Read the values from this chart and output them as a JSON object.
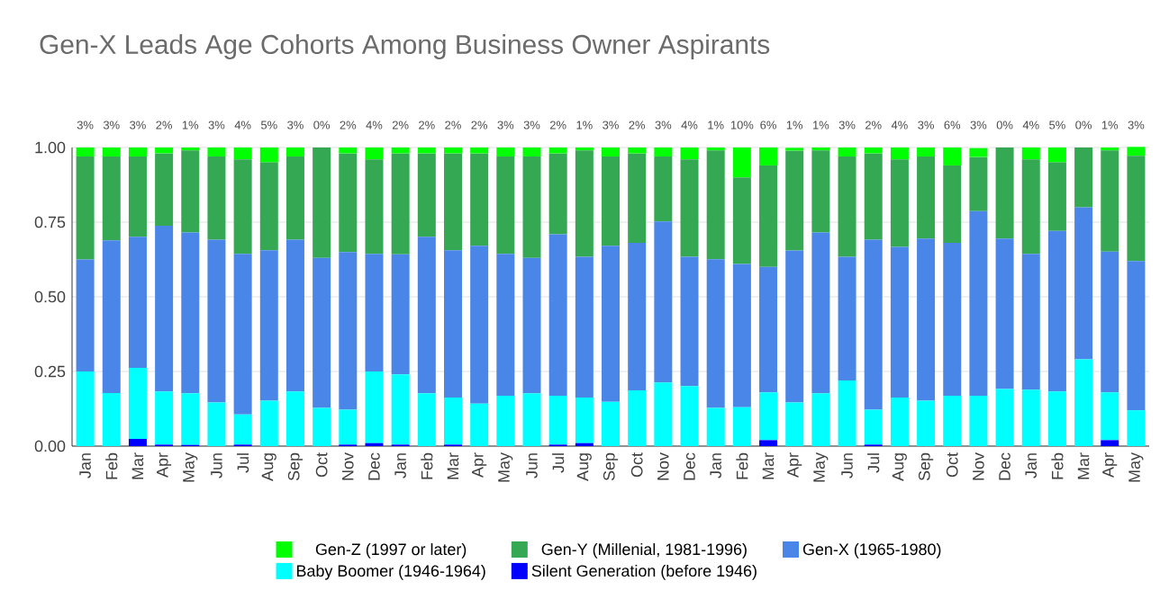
{
  "chart_data": {
    "type": "bar",
    "stacked": true,
    "title": "Gen-X Leads Age Cohorts Among Business Owner Aspirants",
    "categories": [
      "Jan",
      "Feb",
      "Mar",
      "Apr",
      "May",
      "Jun",
      "Jul",
      "Aug",
      "Sep",
      "Oct",
      "Nov",
      "Dec",
      "Jan",
      "Feb",
      "Mar",
      "Apr",
      "May",
      "Jun",
      "Jul",
      "Aug",
      "Sep",
      "Oct",
      "Nov",
      "Dec",
      "Jan",
      "Feb",
      "Mar",
      "Apr",
      "May",
      "Jun",
      "Jul",
      "Aug",
      "Sep",
      "Oct",
      "Nov",
      "Dec",
      "Jan",
      "Feb",
      "Mar",
      "Apr",
      "May"
    ],
    "series": [
      {
        "name": "Silent Generation (before 1946)",
        "color": "#0000ff",
        "values": [
          0,
          0,
          0.024,
          0.005,
          0.004,
          0,
          0.005,
          0,
          0,
          0,
          0.005,
          0.01,
          0.005,
          0,
          0.005,
          0,
          0,
          0,
          0.005,
          0.01,
          0,
          0,
          0,
          0,
          0,
          0,
          0.02,
          0,
          0,
          0,
          0.005,
          0,
          0,
          0,
          0,
          0,
          0,
          0,
          0,
          0.02,
          0
        ]
      },
      {
        "name": "Baby Boomer (1946-1964)",
        "color": "#00ffff",
        "values": [
          0.25,
          0.178,
          0.238,
          0.178,
          0.173,
          0.146,
          0.101,
          0.152,
          0.183,
          0.128,
          0.117,
          0.24,
          0.235,
          0.177,
          0.158,
          0.142,
          0.169,
          0.177,
          0.164,
          0.153,
          0.148,
          0.187,
          0.213,
          0.201,
          0.128,
          0.13,
          0.16,
          0.146,
          0.177,
          0.22,
          0.117,
          0.163,
          0.152,
          0.169,
          0.169,
          0.191,
          0.189,
          0.183,
          0.291,
          0.16,
          0.12
        ]
      },
      {
        "name": "Gen-X (1965-1980)",
        "color": "#4a86e8",
        "values": [
          0.375,
          0.511,
          0.439,
          0.555,
          0.538,
          0.545,
          0.538,
          0.504,
          0.508,
          0.502,
          0.528,
          0.394,
          0.402,
          0.524,
          0.493,
          0.529,
          0.475,
          0.453,
          0.54,
          0.471,
          0.523,
          0.494,
          0.539,
          0.433,
          0.498,
          0.48,
          0.42,
          0.509,
          0.538,
          0.414,
          0.569,
          0.504,
          0.543,
          0.512,
          0.618,
          0.504,
          0.455,
          0.538,
          0.509,
          0.471,
          0.5
        ]
      },
      {
        "name": "Gen-Y (Millenial, 1981-1996)",
        "color": "#34a853",
        "values": [
          0.345,
          0.281,
          0.269,
          0.242,
          0.275,
          0.279,
          0.316,
          0.294,
          0.279,
          0.37,
          0.33,
          0.316,
          0.338,
          0.279,
          0.324,
          0.309,
          0.326,
          0.34,
          0.271,
          0.356,
          0.299,
          0.299,
          0.218,
          0.326,
          0.364,
          0.29,
          0.34,
          0.334,
          0.275,
          0.336,
          0.289,
          0.293,
          0.275,
          0.259,
          0.181,
          0.305,
          0.316,
          0.229,
          0.2,
          0.339,
          0.352
        ]
      },
      {
        "name": "Gen-Z (1997 or later)",
        "color": "#00ff00",
        "values": [
          0.03,
          0.03,
          0.03,
          0.02,
          0.01,
          0.03,
          0.04,
          0.05,
          0.03,
          0,
          0.02,
          0.04,
          0.02,
          0.02,
          0.02,
          0.02,
          0.03,
          0.03,
          0.02,
          0.01,
          0.03,
          0.02,
          0.03,
          0.04,
          0.01,
          0.1,
          0.06,
          0.01,
          0.01,
          0.03,
          0.02,
          0.04,
          0.03,
          0.06,
          0.03,
          0,
          0.04,
          0.05,
          0,
          0.01,
          0.03
        ],
        "value_labels": [
          "3%",
          "3%",
          "3%",
          "2%",
          "1%",
          "3%",
          "4%",
          "5%",
          "3%",
          "0%",
          "2%",
          "4%",
          "2%",
          "2%",
          "2%",
          "2%",
          "3%",
          "3%",
          "2%",
          "1%",
          "3%",
          "2%",
          "3%",
          "4%",
          "1%",
          "10%",
          "6%",
          "1%",
          "1%",
          "3%",
          "2%",
          "4%",
          "3%",
          "6%",
          "3%",
          "0%",
          "4%",
          "5%",
          "0%",
          "1%",
          "3%"
        ]
      }
    ],
    "ylim": [
      0,
      1
    ],
    "yticks": [
      {
        "value": 0,
        "label": "0.00"
      },
      {
        "value": 0.25,
        "label": "0.25"
      },
      {
        "value": 0.5,
        "label": "0.50"
      },
      {
        "value": 0.75,
        "label": "0.75"
      },
      {
        "value": 1,
        "label": "1.00"
      }
    ],
    "grid": "y",
    "legend": "bottom"
  }
}
